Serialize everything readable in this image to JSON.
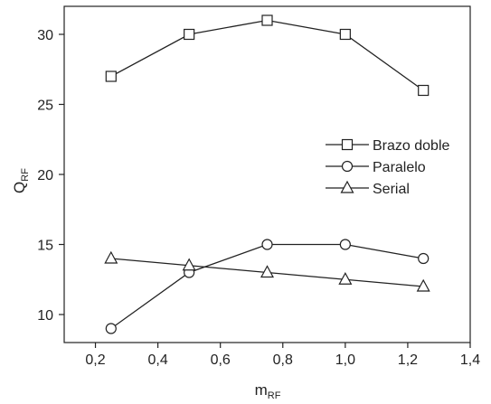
{
  "chart_data": {
    "type": "line",
    "xlabel": "m",
    "xlabel_sub": "RF",
    "ylabel": "Q",
    "ylabel_sub": "RF",
    "xlim": [
      0.1,
      1.4
    ],
    "ylim": [
      8,
      32
    ],
    "xticks": [
      0.2,
      0.4,
      0.6,
      0.8,
      1.0,
      1.2,
      1.4
    ],
    "xtick_labels": [
      "0,2",
      "0,4",
      "0,6",
      "0,8",
      "1,0",
      "1,2",
      "1,4"
    ],
    "yticks": [
      10,
      15,
      20,
      25,
      30
    ],
    "ytick_labels": [
      "10",
      "15",
      "20",
      "25",
      "30"
    ],
    "grid": false,
    "legend_position": "right-middle",
    "series": [
      {
        "name": "Brazo doble",
        "marker": "square",
        "x": [
          0.25,
          0.5,
          0.75,
          1.0,
          1.25
        ],
        "y": [
          27,
          30,
          31,
          30,
          26
        ]
      },
      {
        "name": "Paralelo",
        "marker": "circle",
        "x": [
          0.25,
          0.5,
          0.75,
          1.0,
          1.25
        ],
        "y": [
          9,
          13,
          15,
          15,
          14
        ]
      },
      {
        "name": "Serial",
        "marker": "triangle",
        "x": [
          0.25,
          0.5,
          0.75,
          1.0,
          1.25
        ],
        "y": [
          14,
          13.5,
          13,
          12.5,
          12
        ]
      }
    ],
    "colors": {
      "line": "#222222",
      "marker_fill": "#ffffff"
    }
  }
}
